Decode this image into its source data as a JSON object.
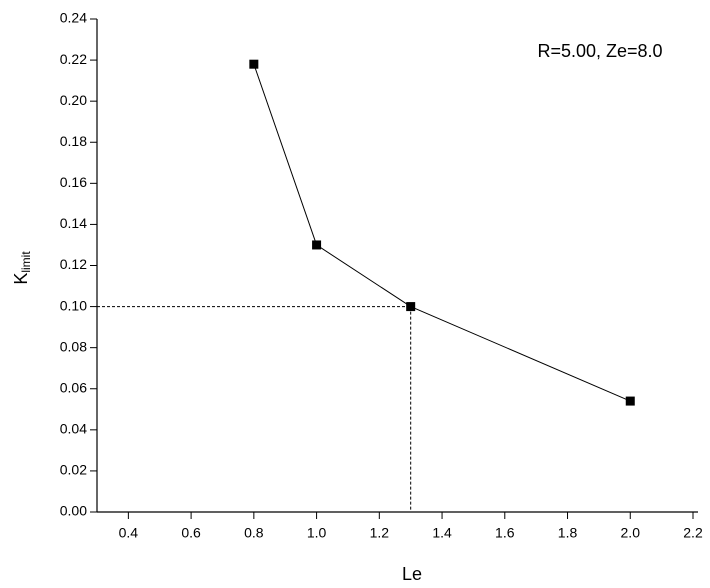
{
  "chart_data": {
    "type": "line",
    "xlabel": "Le",
    "ylabel": {
      "main": "K",
      "sub": "limit"
    },
    "annotation": "R=5.00, Ze=8.0",
    "x": [
      0.8,
      1.0,
      1.3,
      2.0
    ],
    "series": [
      {
        "color": "#000000",
        "values": [
          0.218,
          0.13,
          0.1,
          0.054
        ]
      }
    ],
    "guide_point": {
      "x": 1.3,
      "y": 0.1
    },
    "xlim": [
      0.3,
      2.2
    ],
    "ylim": [
      0,
      0.24
    ],
    "xticks": [
      0.4,
      0.6,
      0.8,
      {
        "value": 1,
        "label": "1.0"
      },
      1.2,
      1.4,
      1.6,
      1.8,
      {
        "value": 2,
        "label": "2.0"
      },
      2.2
    ],
    "yticks": [
      {
        "value": 0,
        "label": "0.00"
      },
      {
        "value": 0.02,
        "label": "0.02"
      },
      {
        "value": 0.04,
        "label": "0.04"
      },
      {
        "value": 0.06,
        "label": "0.06"
      },
      {
        "value": 0.08,
        "label": "0.08"
      },
      {
        "value": 0.1,
        "label": "0.10"
      },
      {
        "value": 0.12,
        "label": "0.12"
      },
      {
        "value": 0.14,
        "label": "0.14"
      },
      {
        "value": 0.16,
        "label": "0.16"
      },
      {
        "value": 0.18,
        "label": "0.18"
      },
      {
        "value": 0.2,
        "label": "0.20"
      },
      {
        "value": 0.22,
        "label": "0.22"
      },
      {
        "value": 0.24,
        "label": "0.24"
      }
    ]
  }
}
